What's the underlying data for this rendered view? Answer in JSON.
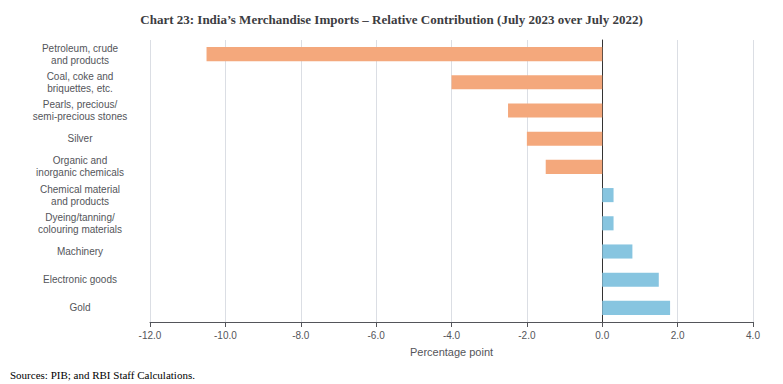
{
  "chart_data": {
    "type": "bar",
    "orientation": "horizontal",
    "title": "Chart 23: India’s Merchandise Imports – Relative Contribution (July 2023 over July 2022)",
    "categories": [
      "Petroleum, crude\nand products",
      "Coal, coke and\nbriquettes, etc.",
      "Pearls, precious/\nsemi-precious stones",
      "Silver",
      "Organic and\ninorganic chemicals",
      "Chemical material\nand products",
      "Dyeing/tanning/\ncolouring materials",
      "Machinery",
      "Electronic goods",
      "Gold"
    ],
    "values": [
      -10.5,
      -4.0,
      -2.5,
      -2.0,
      -1.5,
      0.3,
      0.3,
      0.8,
      1.5,
      1.8
    ],
    "colors": [
      "#f4a87c",
      "#f4a87c",
      "#f4a87c",
      "#f4a87c",
      "#f4a87c",
      "#87c5e0",
      "#87c5e0",
      "#87c5e0",
      "#87c5e0",
      "#87c5e0"
    ],
    "xlabel": "Percentage point",
    "xlim": [
      -12.0,
      4.0
    ],
    "xticks": [
      {
        "value": -12,
        "label": "-12.0"
      },
      {
        "value": -10,
        "label": "-10.0"
      },
      {
        "value": -8,
        "label": "-8.0"
      },
      {
        "value": -6,
        "label": "-6.0"
      },
      {
        "value": -4,
        "label": "-4.0"
      },
      {
        "value": -2,
        "label": "-2.0"
      },
      {
        "value": 0,
        "label": "0.0"
      },
      {
        "value": 2,
        "label": "2.0"
      },
      {
        "value": 4,
        "label": "4.0"
      }
    ],
    "grid": true,
    "annotations": [
      "Sources: PIB; and RBI Staff Calculations."
    ]
  }
}
